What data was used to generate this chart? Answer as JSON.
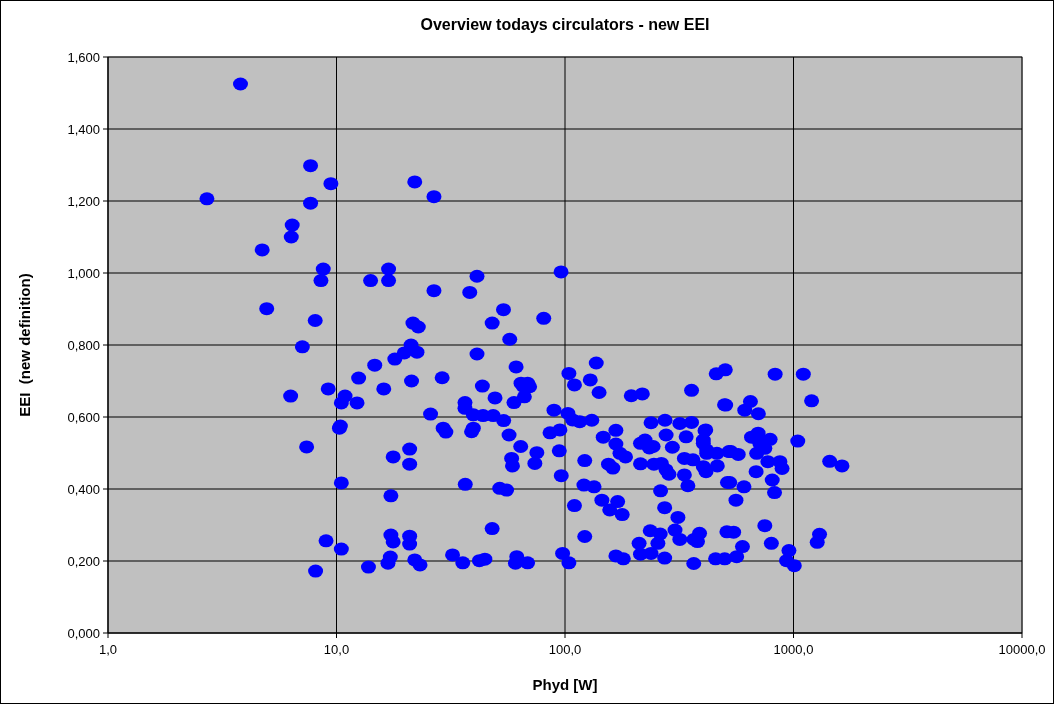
{
  "chart_data": {
    "type": "scatter",
    "title": "Overview todays circulators - new EEI",
    "xlabel": "Phyd [W]",
    "ylabel": "EEI  (new definition)",
    "log": "x",
    "grid": true,
    "marker": "circle",
    "xlim": [
      1,
      10000
    ],
    "xticks": [
      {
        "value": 1,
        "label": "1,0"
      },
      {
        "value": 10,
        "label": "10,0"
      },
      {
        "value": 100,
        "label": "100,0"
      },
      {
        "value": 1000,
        "label": "1000,0"
      },
      {
        "value": 10000,
        "label": "10000,0"
      }
    ],
    "ylim": [
      0,
      1.6
    ],
    "yticks": [
      {
        "value": 0,
        "label": "0,000"
      },
      {
        "value": 0.2,
        "label": "0,200"
      },
      {
        "value": 0.4,
        "label": "0,400"
      },
      {
        "value": 0.6,
        "label": "0,600"
      },
      {
        "value": 0.8,
        "label": "0,800"
      },
      {
        "value": 1,
        "label": "1,000"
      },
      {
        "value": 1.2,
        "label": "1,200"
      },
      {
        "value": 1.4,
        "label": "1,400"
      },
      {
        "value": 1.6,
        "label": "1,600"
      }
    ],
    "series": [
      {
        "color": "#0000ff",
        "x": [
          2.71,
          3.8,
          4.73,
          4.95,
          6.4,
          6.34,
          6.3,
          7.09,
          7.4,
          7.7,
          7.7,
          8.07,
          8.1,
          8.55,
          8.75,
          9.2,
          9.0,
          9.45,
          10.3,
          10.4,
          10.5,
          10.5,
          10.5,
          10.9,
          12.3,
          12.5,
          13.8,
          14.1,
          14.7,
          16.1,
          16.9,
          16.9,
          17.3,
          17.3,
          17.7,
          17.7,
          16.8,
          17.2,
          18.0,
          19.8,
          20.9,
          20.9,
          20.9,
          20.9,
          21.2,
          21.3,
          21.6,
          22.0,
          22.0,
          22.5,
          22.8,
          23.2,
          25.8,
          26.7,
          26.7,
          29.0,
          29.3,
          30.1,
          32.2,
          35.7,
          36.5,
          36.5,
          36.6,
          38.3,
          39.0,
          39.7,
          39.7,
          41.2,
          41.2,
          42.2,
          43.5,
          43.8,
          44.6,
          48.0,
          48.0,
          48.5,
          49.4,
          51.8,
          53.8,
          53.9,
          55.5,
          56.9,
          57.3,
          58.4,
          58.9,
          59.8,
          60.7,
          61.1,
          61.5,
          64.0,
          64.2,
          65.5,
          66.4,
          68.6,
          68.6,
          70.0,
          73.8,
          75.3,
          80.7,
          86,
          89.5,
          94.4,
          95,
          96.1,
          96.3,
          97.6,
          103,
          104,
          104,
          108,
          110,
          110,
          116,
          121,
          122,
          122,
          129,
          131,
          134,
          137,
          141,
          145,
          147,
          155,
          157,
          162,
          167,
          167,
          167,
          170,
          174,
          178,
          180,
          184,
          195,
          211,
          214,
          214,
          214,
          218,
          224,
          234,
          236,
          238,
          238,
          243,
          245,
          255,
          261,
          262,
          264,
          273,
          273,
          274,
          277,
          277,
          285,
          295,
          303,
          312,
          318,
          318,
          333,
          333,
          339,
          345,
          358,
          358,
          363,
          366,
          367,
          380,
          388,
          403,
          403,
          403,
          410,
          413,
          414,
          417,
          417,
          456,
          459,
          462,
          464,
          499,
          500,
          503,
          505,
          511,
          514,
          522,
          526,
          532,
          547,
          560,
          564,
          573,
          598,
          607,
          612,
          648,
          655,
          686,
          690,
          700,
          702,
          712,
          749,
          749,
          772,
          790,
          800,
          807,
          826,
          831,
          872,
          891,
          932,
          955,
          1008,
          1044,
          1104,
          1200,
          1270,
          1300,
          1440,
          1630
        ],
        "values": [
          1.206,
          1.525,
          1.064,
          0.901,
          1.133,
          1.1,
          0.658,
          0.795,
          0.517,
          1.298,
          1.194,
          0.868,
          0.172,
          0.979,
          1.011,
          0.678,
          0.256,
          1.248,
          0.569,
          0.575,
          0.639,
          0.417,
          0.233,
          0.658,
          0.639,
          0.708,
          0.183,
          0.979,
          0.744,
          0.678,
          1.011,
          0.979,
          0.381,
          0.272,
          0.253,
          0.489,
          0.194,
          0.211,
          0.761,
          0.778,
          0.511,
          0.469,
          0.269,
          0.247,
          0.8,
          0.7,
          0.861,
          1.253,
          0.203,
          0.78,
          0.85,
          0.189,
          0.608,
          1.212,
          0.951,
          0.709,
          0.569,
          0.558,
          0.217,
          0.195,
          0.64,
          0.624,
          0.413,
          0.946,
          0.559,
          0.606,
          0.569,
          0.991,
          0.775,
          0.201,
          0.686,
          0.604,
          0.205,
          0.861,
          0.29,
          0.604,
          0.653,
          0.402,
          0.898,
          0.59,
          0.397,
          0.55,
          0.816,
          0.485,
          0.464,
          0.64,
          0.194,
          0.739,
          0.212,
          0.518,
          0.694,
          0.686,
          0.656,
          0.694,
          0.195,
          0.684,
          0.471,
          0.501,
          0.874,
          0.556,
          0.619,
          0.506,
          0.564,
          1.003,
          0.437,
          0.221,
          0.61,
          0.195,
          0.721,
          0.592,
          0.689,
          0.354,
          0.587,
          0.411,
          0.479,
          0.268,
          0.703,
          0.591,
          0.406,
          0.75,
          0.668,
          0.369,
          0.544,
          0.469,
          0.342,
          0.458,
          0.563,
          0.525,
          0.214,
          0.365,
          0.499,
          0.329,
          0.206,
          0.489,
          0.659,
          0.249,
          0.527,
          0.47,
          0.219,
          0.664,
          0.536,
          0.514,
          0.284,
          0.584,
          0.221,
          0.518,
          0.469,
          0.249,
          0.275,
          0.395,
          0.471,
          0.348,
          0.208,
          0.591,
          0.55,
          0.453,
          0.441,
          0.516,
          0.286,
          0.321,
          0.582,
          0.26,
          0.485,
          0.439,
          0.545,
          0.409,
          0.674,
          0.585,
          0.481,
          0.193,
          0.26,
          0.254,
          0.277,
          0.536,
          0.462,
          0.527,
          0.562,
          0.564,
          0.448,
          0.499,
          0.508,
          0.206,
          0.72,
          0.499,
          0.464,
          0.634,
          0.206,
          0.731,
          0.633,
          0.281,
          0.418,
          0.504,
          0.418,
          0.504,
          0.28,
          0.369,
          0.212,
          0.496,
          0.24,
          0.406,
          0.619,
          0.643,
          0.544,
          0.448,
          0.499,
          0.555,
          0.609,
          0.527,
          0.513,
          0.298,
          0.476,
          0.538,
          0.249,
          0.425,
          0.39,
          0.719,
          0.476,
          0.457,
          0.201,
          0.229,
          0.187,
          0.533,
          0.719,
          0.645,
          0.252,
          0.274,
          0.477,
          0.464
        ]
      }
    ]
  }
}
